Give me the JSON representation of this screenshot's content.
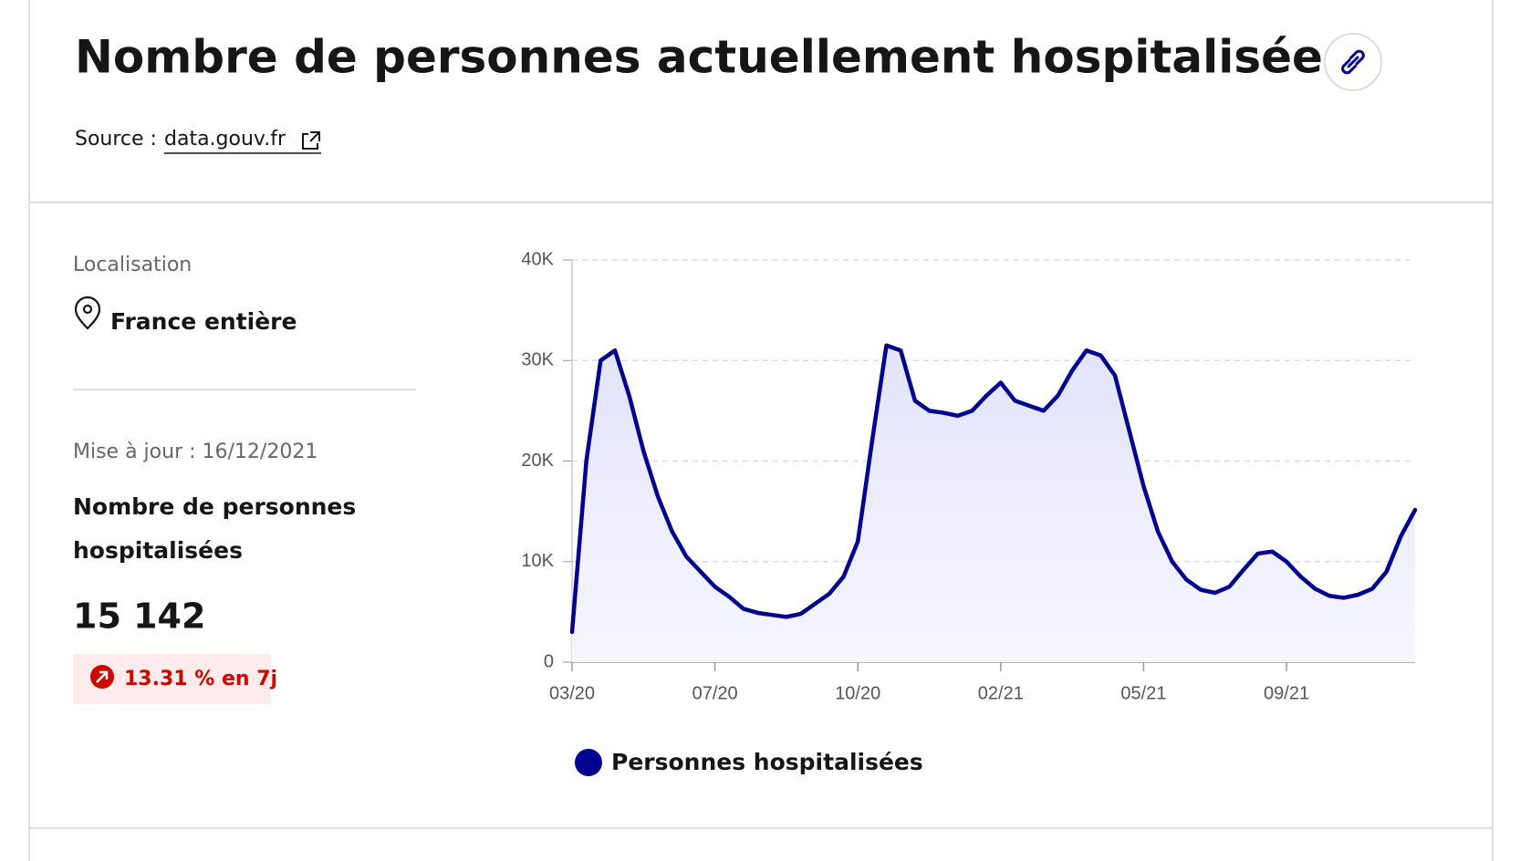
{
  "header": {
    "title": "Nombre de personnes actuellement hospitalisées",
    "source_label": "Source :",
    "source_link": "data.gouv.fr"
  },
  "panel": {
    "location_label": "Localisation",
    "location": "France entière",
    "update": "Mise à jour : 16/12/2021",
    "indicator_line1": "Nombre de personnes",
    "indicator_line2": "hospitalisées",
    "indicator_value": "15 142",
    "trend": "13.31 % en 7j"
  },
  "chart_data": {
    "type": "area",
    "categories": [
      "03/20",
      null,
      null,
      null,
      null,
      null,
      null,
      null,
      null,
      null,
      "07/20",
      null,
      null,
      null,
      null,
      null,
      null,
      null,
      null,
      null,
      "10/20",
      null,
      null,
      null,
      null,
      null,
      null,
      null,
      null,
      null,
      "02/21",
      null,
      null,
      null,
      null,
      null,
      null,
      null,
      null,
      null,
      "05/21",
      null,
      null,
      null,
      null,
      null,
      null,
      null,
      null,
      null,
      "09/21",
      null,
      null,
      null,
      null,
      null,
      null,
      null,
      null,
      null
    ],
    "series": [
      {
        "name": "Personnes hospitalisées",
        "color": "#000091",
        "values": [
          3000,
          20000,
          30000,
          31000,
          26500,
          21000,
          16500,
          13000,
          10500,
          9000,
          7500,
          6500,
          5300,
          4900,
          4700,
          4500,
          4800,
          5800,
          6800,
          8500,
          12000,
          22000,
          31500,
          31000,
          26000,
          25000,
          24800,
          24500,
          25000,
          26500,
          27800,
          26000,
          25500,
          25000,
          26500,
          29000,
          31000,
          30500,
          28500,
          23000,
          17500,
          13000,
          10000,
          8200,
          7200,
          6900,
          7500,
          9200,
          10800,
          11000,
          10000,
          8500,
          7300,
          6600,
          6400,
          6700,
          7300,
          9000,
          12500,
          15142
        ]
      }
    ],
    "ylim": [
      0,
      40000
    ],
    "yticks": [
      0,
      {
        "value": 10000,
        "label": "10K"
      },
      {
        "value": 20000,
        "label": "20K"
      },
      {
        "value": 30000,
        "label": "30K"
      },
      {
        "value": 40000,
        "label": "40K"
      }
    ],
    "grid": true
  }
}
